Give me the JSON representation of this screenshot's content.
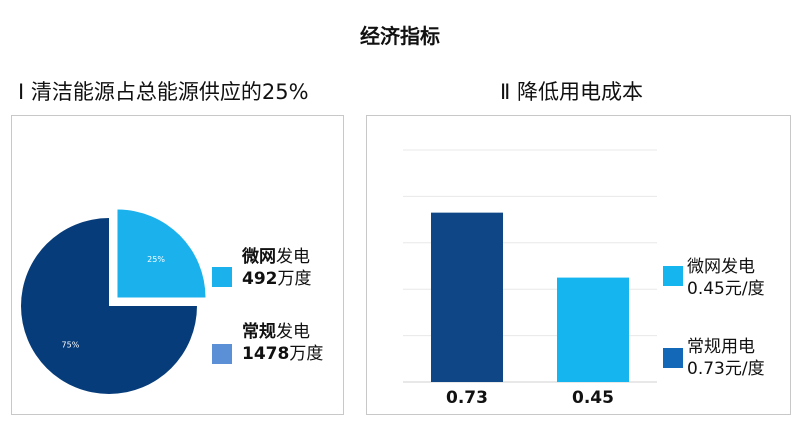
{
  "page": {
    "title": "经济指标"
  },
  "colors": {
    "pie_major": "#073c7a",
    "pie_minor": "#1ab1ec",
    "bar_1": "#0f4786",
    "bar_2": "#15b5ef",
    "swatch_micro": "#1ab1ec",
    "swatch_conv_pie": "#5b8fd6",
    "swatch_conv_bar": "#1369b8"
  },
  "left_panel": {
    "heading": "Ⅰ 清洁能源占总能源供应的25%",
    "legend": [
      {
        "name_bold": "微网",
        "name_rest": "发电",
        "value_bold": "492",
        "value_rest": "万度",
        "icon": "square-swatch"
      },
      {
        "name_bold": "常规",
        "name_rest": "发电",
        "value_bold": "1478",
        "value_rest": "万度",
        "icon": "square-swatch"
      }
    ]
  },
  "right_panel": {
    "heading": "Ⅱ 降低用电成本",
    "legend": [
      {
        "line1": "微网发电",
        "line2": "0.45元/度",
        "icon": "square-swatch"
      },
      {
        "line1": "常规用电",
        "line2": "0.73元/度",
        "icon": "square-swatch"
      }
    ]
  },
  "chart_data": [
    {
      "type": "pie",
      "slices": [
        {
          "label": "25%",
          "value": 25
        },
        {
          "label": "75%",
          "value": 75
        }
      ],
      "note": "25% slice exploded"
    },
    {
      "type": "bar",
      "values": [
        0.73,
        0.45
      ],
      "data_labels": [
        "0.73",
        "0.45"
      ],
      "ylim": [
        0,
        1.0
      ],
      "grid": true
    }
  ]
}
